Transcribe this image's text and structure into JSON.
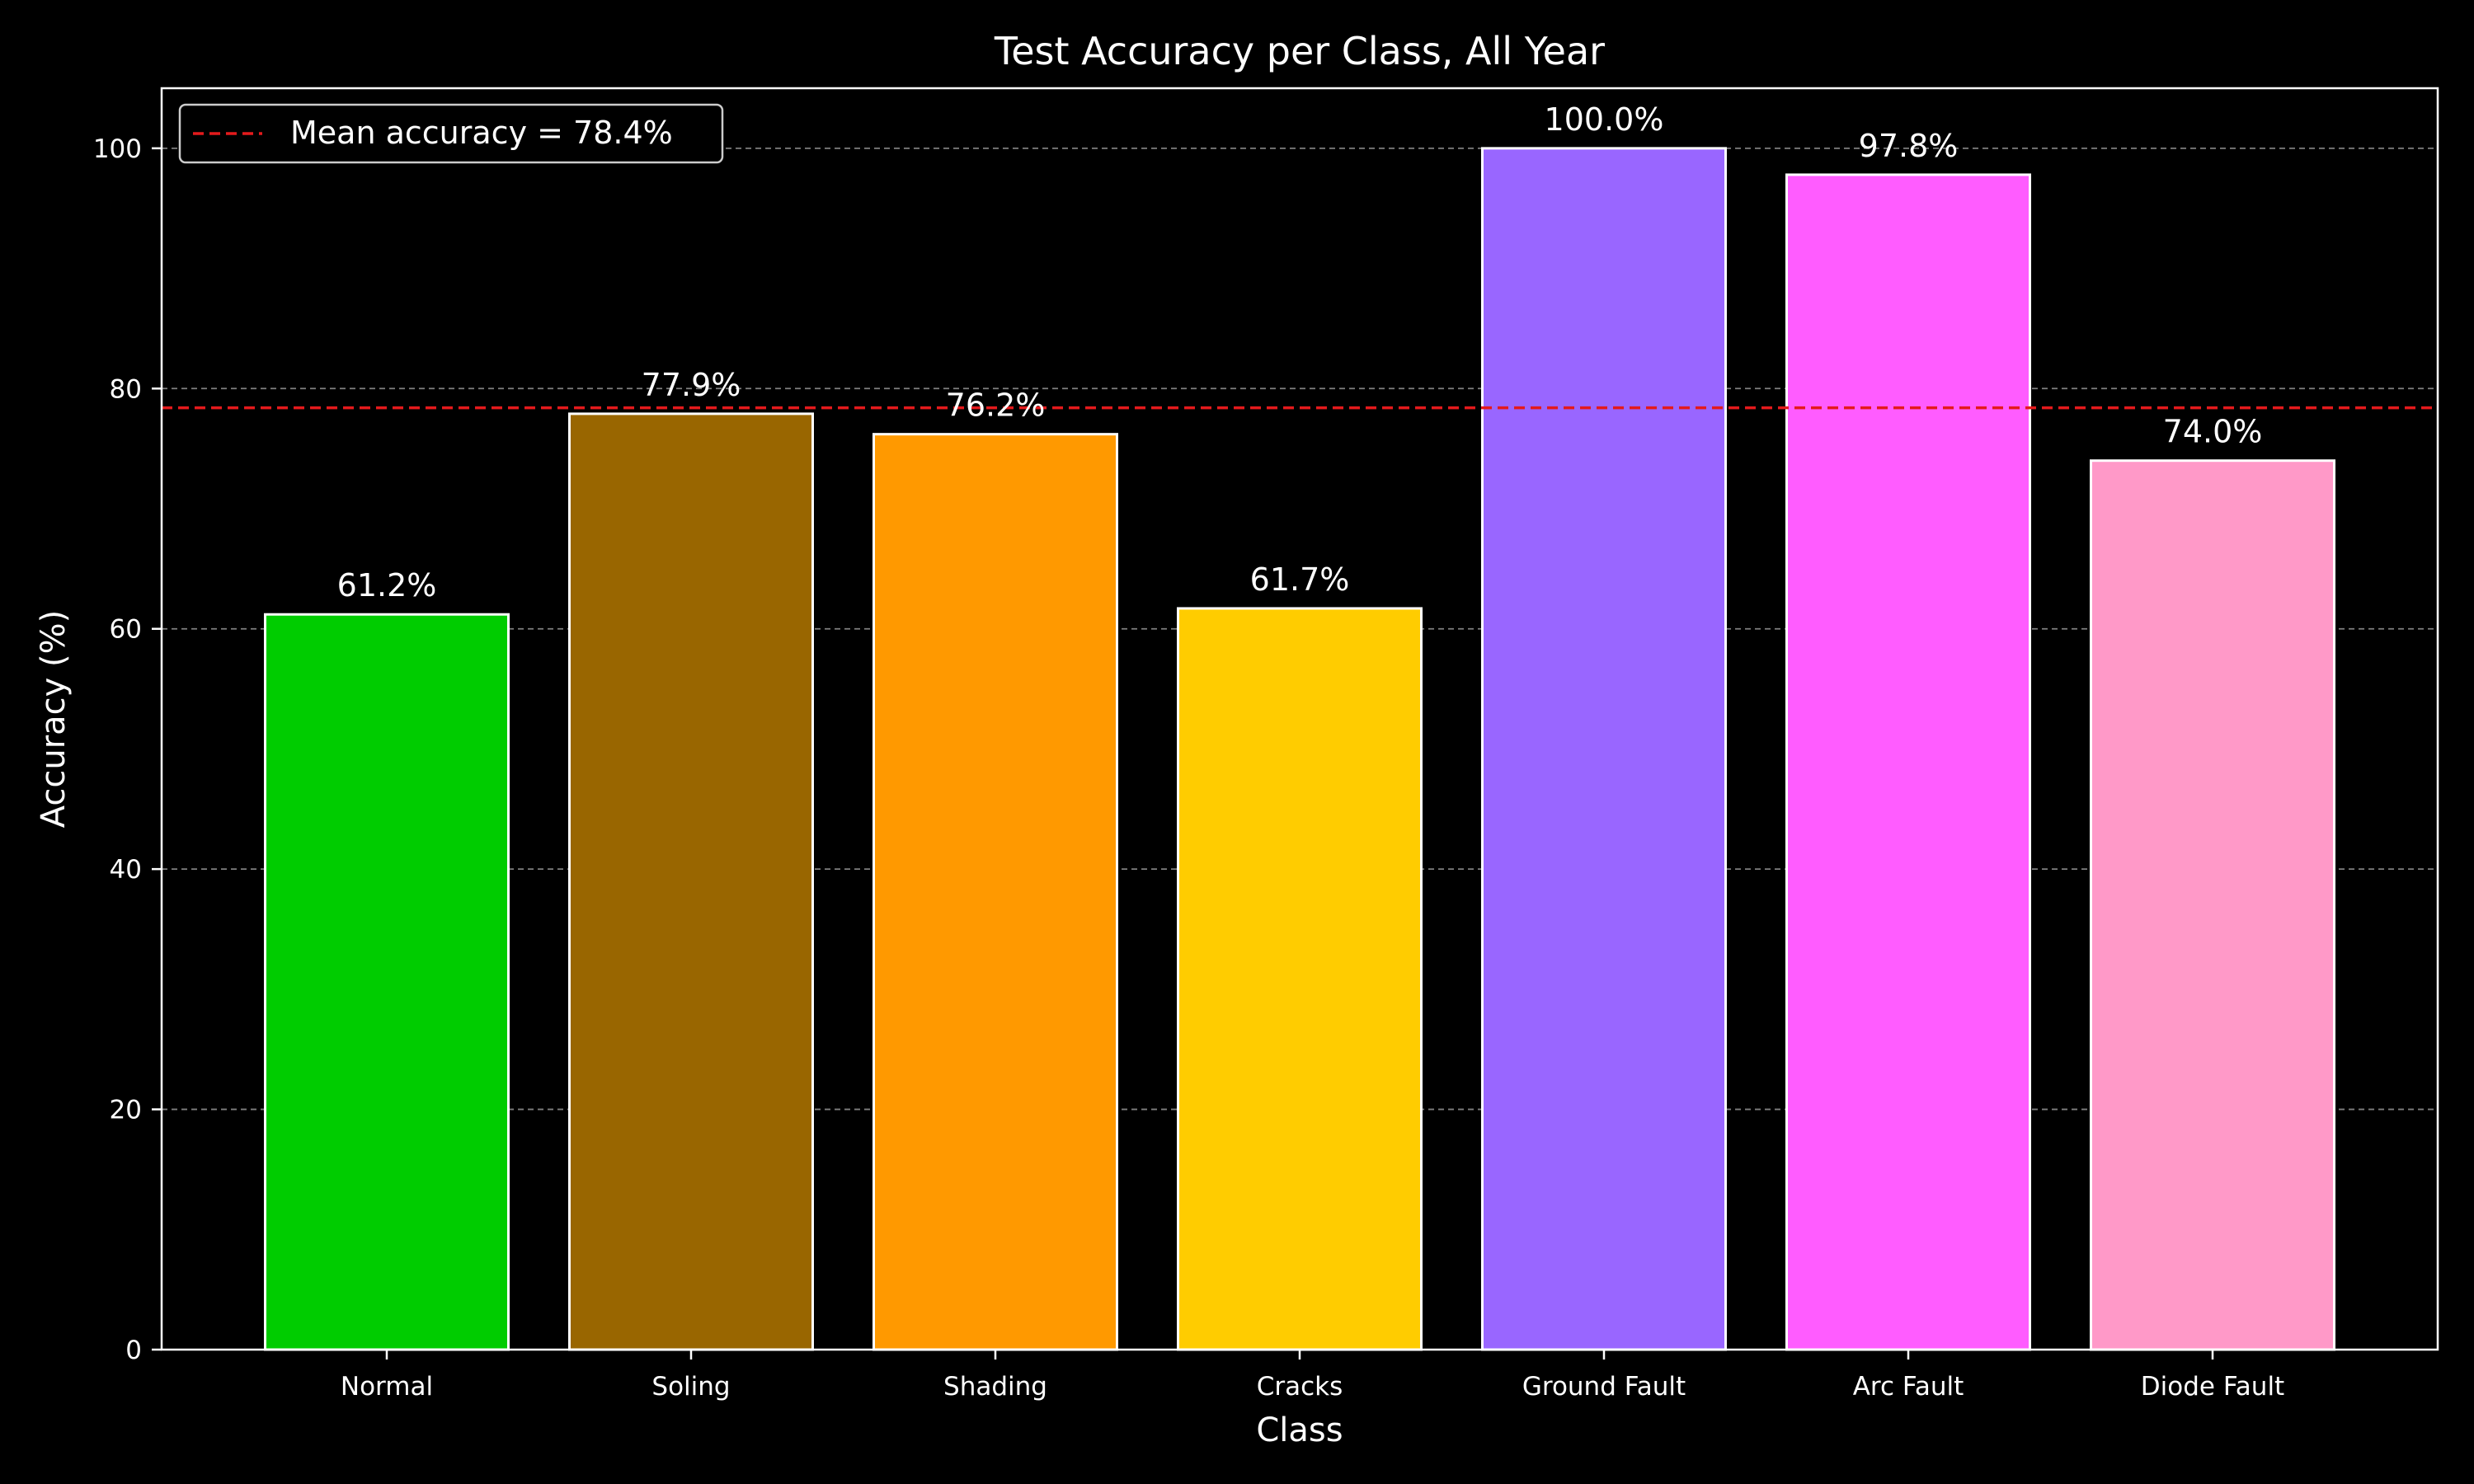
{
  "chart_data": {
    "type": "bar",
    "title": "Test Accuracy per Class, All Year",
    "xlabel": "Class",
    "ylabel": "Accuracy (%)",
    "categories": [
      "Normal",
      "Soling",
      "Shading",
      "Cracks",
      "Ground Fault",
      "Arc Fault",
      "Diode Fault"
    ],
    "values": [
      61.2,
      77.9,
      76.2,
      61.7,
      100.0,
      97.8,
      74.0
    ],
    "value_labels": [
      "61.2%",
      "77.9%",
      "76.2%",
      "61.7%",
      "100.0%",
      "97.8%",
      "74.0%"
    ],
    "colors": [
      "#00cc00",
      "#996600",
      "#ff9900",
      "#ffcc00",
      "#9966ff",
      "#ff5cff",
      "#ff99c8"
    ],
    "ylim": [
      0,
      105
    ],
    "yticks": [
      0,
      20,
      40,
      60,
      80,
      100
    ],
    "ytick_labels": [
      "0",
      "20",
      "40",
      "60",
      "80",
      "100"
    ],
    "grid": "y-dashed",
    "reference_line": {
      "value": 78.4,
      "label": "Mean accuracy = 78.4%",
      "color": "#e41a1c",
      "style": "dashed"
    },
    "legend_position": "top-left",
    "background": "#000000",
    "text_color": "#ffffff",
    "bar_edge_color": "#ffffff"
  }
}
